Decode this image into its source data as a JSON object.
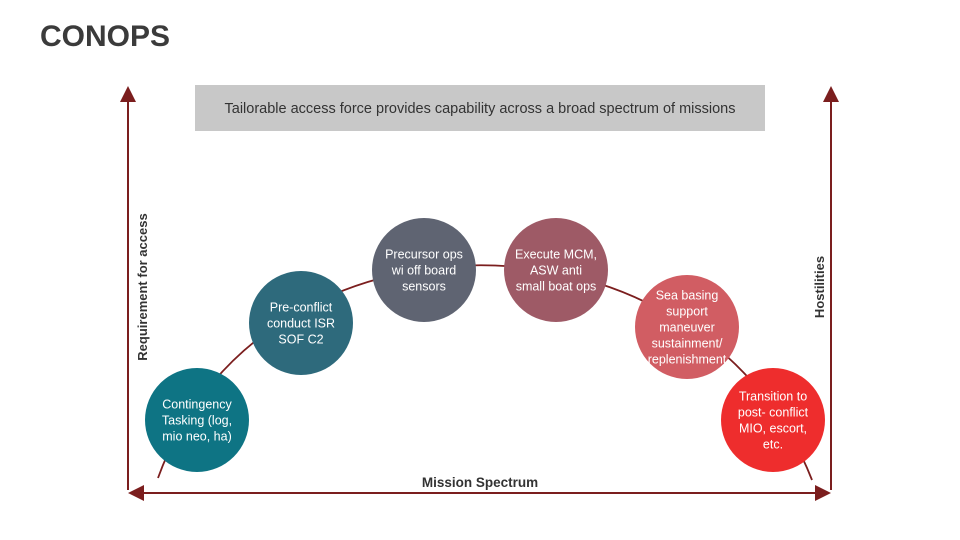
{
  "title": "CONOPS",
  "banner": "Tailorable access force provides capability across a broad spectrum of missions",
  "axes": {
    "left": "Requirement for access",
    "right": "Hostilities",
    "bottom": "Mission Spectrum"
  },
  "nodes": [
    {
      "lines": [
        "Contingency",
        "Tasking (log,",
        "mio neo, ha)"
      ]
    },
    {
      "lines": [
        "Pre-conflict",
        "conduct ISR",
        "SOF C2"
      ]
    },
    {
      "lines": [
        "Precursor ops",
        "wi off board",
        "sensors"
      ]
    },
    {
      "lines": [
        "Execute MCM,",
        "ASW anti",
        "small boat ops"
      ]
    },
    {
      "lines": [
        "Sea basing",
        "support",
        "maneuver",
        "sustainment/",
        "replenishment"
      ]
    },
    {
      "lines": [
        "Transition to",
        "post- conflict",
        "MIO, escort,",
        "etc."
      ]
    }
  ]
}
